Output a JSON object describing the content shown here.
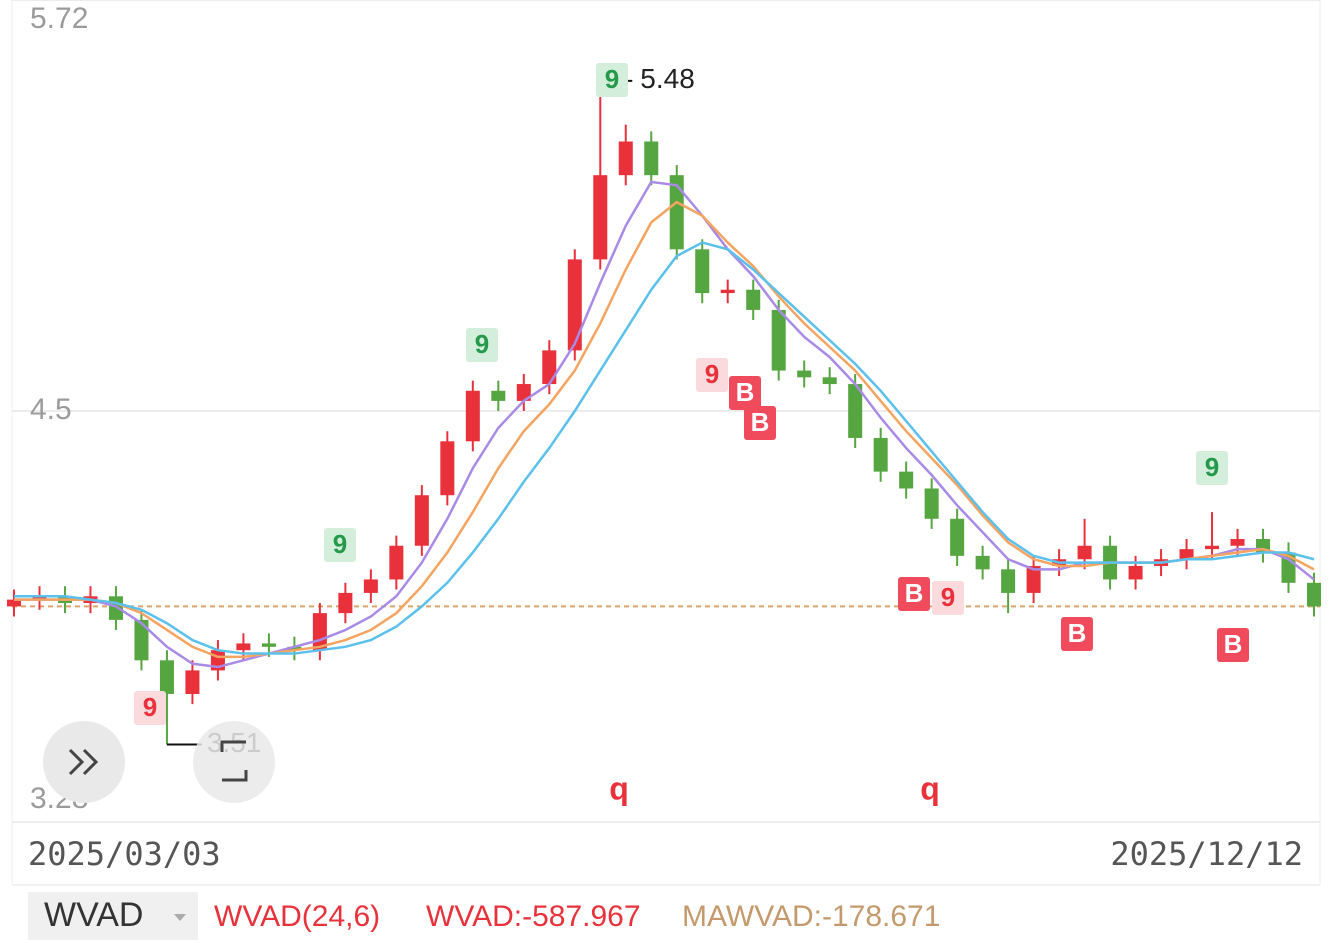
{
  "chart_data": {
    "type": "candlestick",
    "categories": [
      "2025/03/03",
      null,
      null,
      null,
      null,
      null,
      null,
      null,
      null,
      null,
      null,
      null,
      null,
      null,
      null,
      null,
      null,
      null,
      null,
      null,
      null,
      null,
      null,
      null,
      null,
      null,
      null,
      null,
      null,
      null,
      null,
      null,
      null,
      null,
      null,
      null,
      null,
      null,
      null,
      null,
      null,
      null,
      null,
      null,
      null,
      null,
      null,
      null,
      null,
      null,
      null,
      "2025/12/12"
    ],
    "open": [
      3.92,
      3.94,
      3.95,
      3.93,
      3.95,
      3.88,
      3.76,
      3.66,
      3.73,
      3.79,
      3.81,
      3.8,
      3.79,
      3.9,
      3.96,
      4.0,
      4.1,
      4.25,
      4.41,
      4.56,
      4.53,
      4.58,
      4.68,
      4.95,
      5.2,
      5.3,
      5.2,
      4.98,
      4.85,
      4.86,
      4.8,
      4.62,
      4.6,
      4.58,
      4.42,
      4.32,
      4.27,
      4.18,
      4.07,
      4.03,
      3.96,
      4.04,
      4.06,
      4.1,
      4.0,
      4.04,
      4.06,
      4.09,
      4.1,
      4.12,
      4.08,
      3.99
    ],
    "high": [
      3.97,
      3.98,
      3.98,
      3.98,
      3.98,
      3.91,
      3.79,
      3.76,
      3.82,
      3.84,
      3.84,
      3.83,
      3.93,
      3.99,
      4.03,
      4.13,
      4.28,
      4.44,
      4.59,
      4.59,
      4.61,
      4.71,
      4.98,
      5.48,
      5.35,
      5.33,
      5.23,
      5.01,
      4.89,
      4.89,
      4.83,
      4.65,
      4.63,
      4.61,
      4.45,
      4.35,
      4.3,
      4.21,
      4.1,
      4.06,
      4.07,
      4.09,
      4.18,
      4.13,
      4.07,
      4.09,
      4.12,
      4.2,
      4.15,
      4.15,
      4.11,
      4.02
    ],
    "low": [
      3.89,
      3.91,
      3.9,
      3.9,
      3.85,
      3.73,
      3.51,
      3.63,
      3.7,
      3.76,
      3.77,
      3.76,
      3.76,
      3.87,
      3.93,
      3.97,
      4.07,
      4.22,
      4.38,
      4.5,
      4.5,
      4.55,
      4.65,
      4.92,
      5.17,
      5.17,
      4.95,
      4.82,
      4.82,
      4.77,
      4.59,
      4.57,
      4.55,
      4.39,
      4.29,
      4.24,
      4.15,
      4.04,
      4.0,
      3.9,
      3.93,
      4.01,
      4.03,
      3.97,
      3.97,
      4.01,
      4.03,
      4.06,
      4.07,
      4.05,
      3.96,
      3.89
    ],
    "close": [
      3.94,
      3.95,
      3.93,
      3.95,
      3.88,
      3.76,
      3.66,
      3.73,
      3.79,
      3.81,
      3.8,
      3.79,
      3.9,
      3.96,
      4.0,
      4.1,
      4.25,
      4.41,
      4.56,
      4.53,
      4.58,
      4.68,
      4.95,
      5.2,
      5.3,
      5.2,
      4.98,
      4.85,
      4.86,
      4.8,
      4.62,
      4.6,
      4.58,
      4.42,
      4.32,
      4.27,
      4.18,
      4.07,
      4.03,
      3.96,
      4.04,
      4.06,
      4.1,
      4.0,
      4.04,
      4.06,
      4.09,
      4.1,
      4.12,
      4.08,
      3.99,
      3.92
    ],
    "up_color": "#e8313a",
    "down_color": "#55a640",
    "series": [
      {
        "color": "#a98ae6",
        "values": [
          3.94,
          3.94,
          3.94,
          3.94,
          3.92,
          3.87,
          3.8,
          3.75,
          3.74,
          3.76,
          3.78,
          3.8,
          3.82,
          3.85,
          3.89,
          3.95,
          4.05,
          4.18,
          4.33,
          4.45,
          4.53,
          4.58,
          4.7,
          4.88,
          5.05,
          5.18,
          5.17,
          5.08,
          4.98,
          4.9,
          4.8,
          4.72,
          4.66,
          4.58,
          4.48,
          4.39,
          4.31,
          4.22,
          4.14,
          4.06,
          4.03,
          4.03,
          4.05,
          4.05,
          4.05,
          4.05,
          4.06,
          4.07,
          4.09,
          4.09,
          4.06,
          4.0
        ]
      },
      {
        "color": "#f4a460",
        "values": [
          3.94,
          3.94,
          3.94,
          3.94,
          3.93,
          3.9,
          3.85,
          3.8,
          3.77,
          3.77,
          3.78,
          3.79,
          3.8,
          3.82,
          3.85,
          3.9,
          3.98,
          4.08,
          4.2,
          4.33,
          4.44,
          4.52,
          4.62,
          4.76,
          4.92,
          5.06,
          5.12,
          5.08,
          5.0,
          4.93,
          4.84,
          4.76,
          4.69,
          4.62,
          4.53,
          4.44,
          4.36,
          4.28,
          4.19,
          4.11,
          4.06,
          4.04,
          4.04,
          4.05,
          4.05,
          4.05,
          4.06,
          4.07,
          4.08,
          4.09,
          4.07,
          4.03
        ]
      },
      {
        "color": "#5bc0eb",
        "values": [
          3.95,
          3.95,
          3.95,
          3.94,
          3.93,
          3.91,
          3.87,
          3.82,
          3.79,
          3.78,
          3.78,
          3.78,
          3.79,
          3.8,
          3.82,
          3.86,
          3.92,
          3.99,
          4.08,
          4.18,
          4.29,
          4.39,
          4.5,
          4.62,
          4.74,
          4.86,
          4.96,
          5.0,
          4.98,
          4.92,
          4.85,
          4.78,
          4.71,
          4.64,
          4.56,
          4.47,
          4.38,
          4.29,
          4.2,
          4.12,
          4.07,
          4.05,
          4.05,
          4.05,
          4.05,
          4.05,
          4.06,
          4.06,
          4.07,
          4.08,
          4.08,
          4.06
        ]
      }
    ],
    "ylim": [
      3.28,
      5.72
    ],
    "yticks": [
      3.28,
      4.5,
      5.72
    ],
    "grid": true,
    "reference_line": 3.92,
    "max_label": 5.48,
    "min_label": 3.51,
    "markers": [
      "9",
      "9",
      "9",
      "9",
      "9",
      "9",
      "9",
      "B",
      "B",
      "B",
      "B",
      "B",
      "q",
      "q"
    ],
    "indicator": {
      "name": "WVAD",
      "params": "WVAD(24,6)",
      "value": "WVAD:-587.967",
      "ma_value": "MAWVAD:-178.671"
    }
  }
}
